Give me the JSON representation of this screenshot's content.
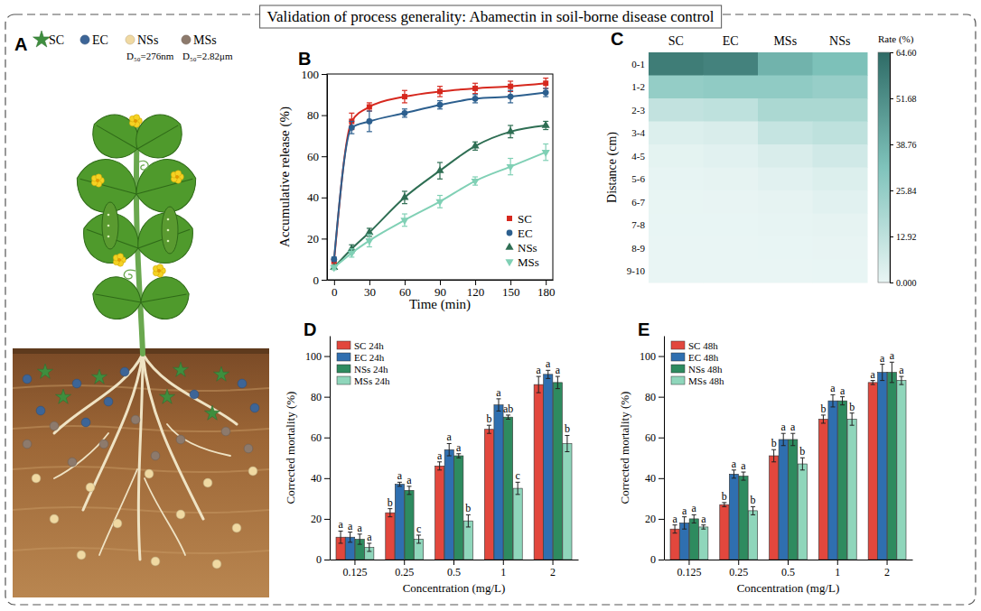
{
  "title": "Validation of process generality: Abamectin in soil-borne disease control",
  "chart_data": [
    {
      "panel": "A",
      "type": "diagram",
      "legend": [
        {
          "name": "SC",
          "color": "#3e8e3e",
          "marker": "star"
        },
        {
          "name": "EC",
          "color": "#3d6597",
          "marker": "circle"
        },
        {
          "name": "NSs",
          "color": "#f0d9a2",
          "marker": "circle",
          "size_label": "D₅₀=276nm"
        },
        {
          "name": "MSs",
          "color": "#8d7a6c",
          "marker": "circle",
          "size_label": "D₅₀=2.82μm"
        }
      ]
    },
    {
      "panel": "B",
      "type": "line",
      "x": [
        0,
        15,
        30,
        60,
        90,
        120,
        150,
        180
      ],
      "xlim": [
        -6,
        186
      ],
      "xticks": [
        0,
        30,
        60,
        90,
        120,
        150,
        180
      ],
      "ylim": [
        0,
        100
      ],
      "yticks": [
        0,
        20,
        40,
        60,
        80,
        100
      ],
      "xlabel": "Time (min)",
      "ylabel": "Accumulative release (%)",
      "legend": "lower right",
      "series": [
        {
          "name": "SC",
          "color": "#d6281e",
          "marker": "square",
          "values": [
            9,
            77,
            84,
            89,
            91.5,
            93,
            94,
            95.5
          ],
          "errors": [
            1,
            4,
            2,
            3,
            2.5,
            2.5,
            2.5,
            2.5
          ]
        },
        {
          "name": "EC",
          "color": "#2c5f8e",
          "marker": "circle",
          "values": [
            10,
            74,
            77,
            81,
            85,
            88,
            89,
            91
          ],
          "errors": [
            1,
            3,
            5,
            2,
            2,
            2,
            3,
            2
          ]
        },
        {
          "name": "NSs",
          "color": "#2e6e53",
          "marker": "triangle-up",
          "values": [
            6,
            15,
            23,
            40,
            53,
            65,
            72,
            75
          ],
          "errors": [
            1,
            2,
            2,
            3,
            4,
            2,
            3,
            2
          ]
        },
        {
          "name": "MSs",
          "color": "#80d0b5",
          "marker": "triangle-down",
          "values": [
            6,
            13,
            19,
            29,
            38,
            48,
            55,
            62
          ],
          "errors": [
            1,
            2,
            3,
            3,
            3,
            2,
            4,
            4
          ]
        }
      ]
    },
    {
      "panel": "C",
      "type": "heatmap",
      "categories": [
        "SC",
        "EC",
        "MSs",
        "NSs"
      ],
      "rows": [
        "0-1",
        "1-2",
        "2-3",
        "3-4",
        "4-5",
        "5-6",
        "6-7",
        "7-8",
        "8-9",
        "9-10"
      ],
      "ylabel": "Distance (cm)",
      "cells": [
        [
          58,
          56,
          38,
          33
        ],
        [
          26,
          27,
          27,
          25
        ],
        [
          12,
          13,
          19,
          19
        ],
        [
          4,
          5,
          11,
          13
        ],
        [
          1.5,
          2.5,
          5,
          7.5
        ],
        [
          0.5,
          1,
          2.5,
          4
        ],
        [
          0.3,
          0.4,
          1,
          2.5
        ],
        [
          0.2,
          0.2,
          0.5,
          1
        ],
        [
          0.1,
          0.1,
          0.2,
          0.4
        ],
        [
          0.1,
          0.1,
          0.1,
          0.2
        ]
      ],
      "colorbar": {
        "label": "Rate (%)",
        "range": [
          0,
          64.6
        ],
        "ticks": [
          {
            "value": 0,
            "label": "0.000"
          },
          12.92,
          25.84,
          38.76,
          51.68,
          {
            "value": 64.6,
            "label": "64.60"
          }
        ],
        "colors": [
          "#e9f5f4",
          "#7fc3bb",
          "#2e6b66"
        ]
      }
    },
    {
      "panel": "D",
      "type": "bar",
      "categories": [
        "0.125",
        "0.25",
        "0.5",
        "1",
        "2"
      ],
      "xlabel": "Concentration (mg/L)",
      "ylabel": "Corrected mortality (%)",
      "ylim": [
        0,
        110
      ],
      "yticks": [
        0,
        20,
        40,
        60,
        80,
        100
      ],
      "legend": "upper left",
      "series": [
        {
          "name": "SC 24h",
          "color": "#e2473d",
          "values": [
            11,
            23,
            46,
            64,
            86
          ],
          "errors": [
            3,
            2,
            2,
            2,
            4
          ],
          "letters": [
            "a",
            "b",
            "a",
            "b",
            "a"
          ]
        },
        {
          "name": "EC 24h",
          "color": "#2f6fb0",
          "values": [
            11,
            37,
            54,
            76,
            91
          ],
          "errors": [
            2.5,
            1,
            3,
            3,
            2
          ],
          "letters": [
            "a",
            "a",
            "a",
            "a",
            "a"
          ]
        },
        {
          "name": "NSs 24h",
          "color": "#2e8b5f",
          "values": [
            10,
            34,
            51,
            70,
            87
          ],
          "errors": [
            2.5,
            2,
            1,
            1,
            3
          ],
          "letters": [
            "a",
            "a",
            "a",
            "ab",
            "a"
          ]
        },
        {
          "name": "MSs 24h",
          "color": "#8fd6bb",
          "values": [
            6,
            10,
            19,
            35,
            57
          ],
          "errors": [
            2,
            2,
            3,
            3,
            4
          ],
          "letters": [
            "a",
            "c",
            "b",
            "c",
            "b"
          ]
        }
      ]
    },
    {
      "panel": "E",
      "type": "bar",
      "categories": [
        "0.125",
        "0.25",
        "0.5",
        "1",
        "2"
      ],
      "xlabel": "Concentration (mg/L)",
      "ylabel": "Corrected mortality (%)",
      "ylim": [
        0,
        110
      ],
      "yticks": [
        0,
        20,
        40,
        60,
        80,
        100
      ],
      "legend": "upper left",
      "series": [
        {
          "name": "SC 48h",
          "color": "#e2473d",
          "values": [
            15,
            27,
            51,
            69,
            87
          ],
          "errors": [
            2,
            1,
            3,
            2,
            1
          ],
          "letters": [
            "a",
            "b",
            "b",
            "b",
            "a"
          ]
        },
        {
          "name": "EC 48h",
          "color": "#2f6fb0",
          "values": [
            18,
            42,
            59,
            78,
            92
          ],
          "errors": [
            3,
            2,
            3,
            3,
            4
          ],
          "letters": [
            "a",
            "a",
            "a",
            "a",
            "a"
          ]
        },
        {
          "name": "NSs 48h",
          "color": "#2e8b5f",
          "values": [
            20,
            41,
            59,
            78,
            92
          ],
          "errors": [
            2,
            2,
            3,
            2,
            5
          ],
          "letters": [
            "a",
            "a",
            "a",
            "a",
            "a"
          ]
        },
        {
          "name": "MSs 48h",
          "color": "#8fd6bb",
          "values": [
            16,
            24,
            47,
            69,
            88
          ],
          "errors": [
            1,
            2,
            3,
            3,
            2
          ],
          "letters": [
            "a",
            "b",
            "b",
            "b",
            "a"
          ]
        }
      ]
    }
  ]
}
